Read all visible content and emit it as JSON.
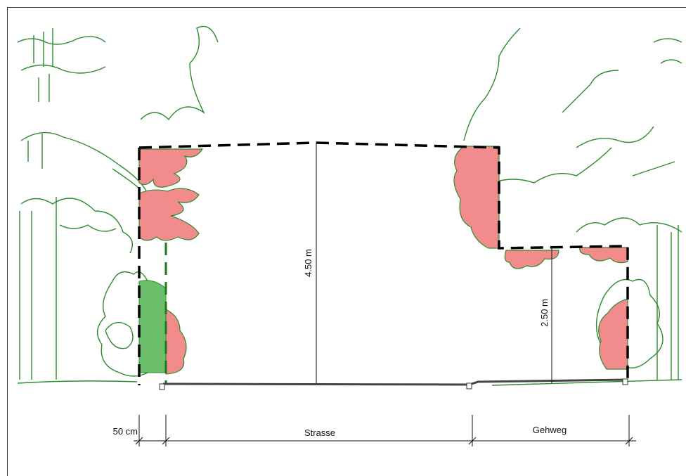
{
  "dimensions": {
    "height_street": "4.50 m",
    "height_sidewalk": "2.50 m",
    "side_clearance": "50 cm"
  },
  "zones": {
    "street": "Strasse",
    "sidewalk": "Gehweg"
  }
}
